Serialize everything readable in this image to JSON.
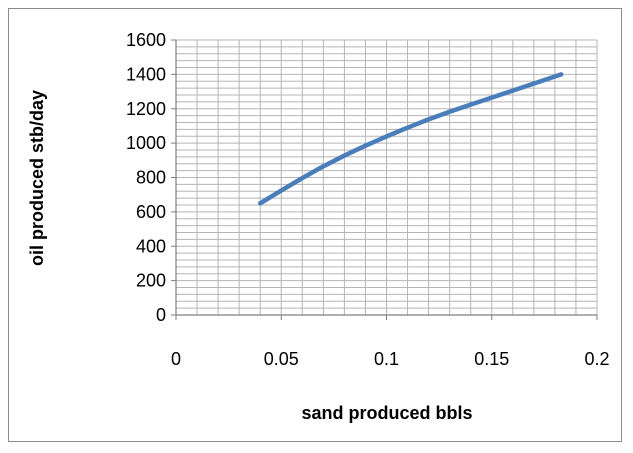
{
  "chart_data": {
    "type": "scatter",
    "title": "",
    "xlabel": "sand produced bbls",
    "ylabel": "oil produced stb/day",
    "xlim": [
      0,
      0.2
    ],
    "ylim": [
      0,
      1600
    ],
    "x_ticks": [
      "0",
      "0.05",
      "0.1",
      "0.15",
      "0.2"
    ],
    "y_ticks": [
      "0",
      "200",
      "400",
      "600",
      "800",
      "1000",
      "1200",
      "1400",
      "1600"
    ],
    "x_tick_values": [
      0,
      0.05,
      0.1,
      0.15,
      0.2
    ],
    "y_tick_values": [
      0,
      200,
      400,
      600,
      800,
      1000,
      1200,
      1400,
      1600
    ],
    "x_minor_step": 0.01,
    "y_minor_step": 40,
    "grid": true,
    "legend": "none",
    "line_color": "#4a7ebb",
    "grid_color": "#b5b5b5",
    "series": [
      {
        "x": [
          0.04,
          0.06,
          0.08,
          0.1,
          0.12,
          0.14,
          0.16,
          0.183
        ],
        "y": [
          650,
          800,
          930,
          1040,
          1140,
          1225,
          1305,
          1400
        ]
      }
    ]
  }
}
